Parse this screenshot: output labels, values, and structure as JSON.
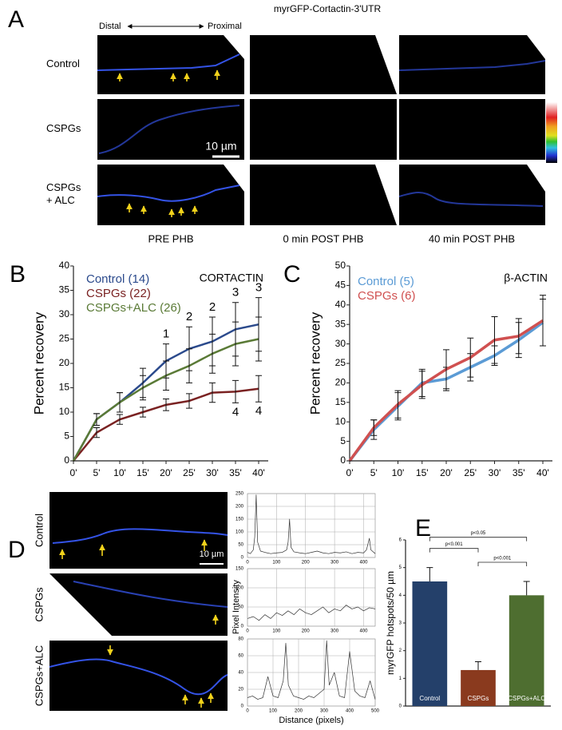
{
  "panels": {
    "A": {
      "letter": "A",
      "title": "myrGFP-Cortactin-3'UTR",
      "distal": "Distal",
      "proximal": "Proximal",
      "rows": [
        [
          "Control"
        ],
        [
          "CSPGs"
        ],
        [
          "CSPGs",
          "+ ALC"
        ]
      ],
      "columns": [
        "PRE PHB",
        "0 min POST PHB",
        "40 min POST PHB"
      ],
      "scale_bar": "10 µm"
    },
    "B": {
      "letter": "B"
    },
    "C": {
      "letter": "C"
    },
    "D": {
      "letter": "D",
      "rows": [
        "Control",
        "CSPGs",
        "CSPGs+ALC"
      ],
      "scale_bar": "10 µm",
      "y_label": "Pixel Intensity",
      "x_label": "Distance (pixels)"
    },
    "E": {
      "letter": "E"
    }
  },
  "chart_data": [
    {
      "type": "line",
      "title": "CORTACTIN",
      "ylabel": "Percent recovery",
      "categories": [
        "0'",
        "5'",
        "10'",
        "15'",
        "20'",
        "25'",
        "30'",
        "35'",
        "40'"
      ],
      "series": [
        {
          "name": "Control (14)",
          "color": "#2b4a8c",
          "values": [
            0,
            8.5,
            12,
            16,
            20.5,
            23,
            24.5,
            27,
            28
          ],
          "errors": [
            0,
            1.2,
            2,
            3,
            3.5,
            4.5,
            5,
            5.5,
            5.5
          ]
        },
        {
          "name": "CSPGs (22)",
          "color": "#7a2222",
          "values": [
            0,
            5.8,
            8.5,
            10,
            11.5,
            12.3,
            14,
            14.2,
            14.8
          ],
          "errors": [
            0,
            1,
            1,
            1,
            1.2,
            1.5,
            2,
            2.3,
            2.7
          ]
        },
        {
          "name": "CSPGs+ALC (26)",
          "color": "#5a7a36",
          "values": [
            0,
            8.5,
            12,
            15,
            17.5,
            19.5,
            22,
            24,
            25
          ],
          "errors": [
            0,
            1.2,
            2,
            2.5,
            3,
            3.5,
            4,
            4.5,
            4.5
          ]
        }
      ],
      "annotations": [
        {
          "text": "1",
          "x": "20'",
          "position": "above"
        },
        {
          "text": "2",
          "x": "25'",
          "position": "above"
        },
        {
          "text": "2",
          "x": "30'",
          "position": "above"
        },
        {
          "text": "3",
          "x": "35'",
          "position": "above"
        },
        {
          "text": "3",
          "x": "40'",
          "position": "above"
        },
        {
          "text": "4",
          "x": "35'",
          "position": "below"
        },
        {
          "text": "4",
          "x": "40'",
          "position": "below"
        }
      ],
      "ylim": [
        0,
        40
      ],
      "yticks": [
        0,
        5,
        10,
        15,
        20,
        25,
        30,
        35,
        40
      ],
      "grid": false
    },
    {
      "type": "line",
      "title": "β-ACTIN",
      "ylabel": "Percent recovery",
      "categories": [
        "0'",
        "5'",
        "10'",
        "15'",
        "20'",
        "25'",
        "30'",
        "35'",
        "40'"
      ],
      "series": [
        {
          "name": "Control (5)",
          "color": "#5b9bd5",
          "values": [
            0,
            8,
            14,
            20,
            21,
            24,
            27,
            31,
            35.5
          ],
          "errors": [
            0,
            2.5,
            3.5,
            3.5,
            3,
            3.5,
            2.5,
            4.5,
            6
          ]
        },
        {
          "name": "CSPGs (6)",
          "color": "#d05050",
          "values": [
            0,
            8.5,
            14.5,
            19.5,
            23.5,
            26.5,
            31,
            32,
            36
          ],
          "errors": [
            0,
            2,
            3.5,
            3.5,
            5,
            5,
            6,
            4.5,
            6.5
          ]
        }
      ],
      "ylim": [
        0,
        50
      ],
      "yticks": [
        0,
        5,
        10,
        15,
        20,
        25,
        30,
        35,
        40,
        45,
        50
      ],
      "grid": false
    },
    {
      "type": "bar",
      "ylabel": "myrGFP hotspots/50 µm",
      "categories": [
        "Control",
        "CSPGs",
        "CSPGs+ALC"
      ],
      "values": [
        4.5,
        1.3,
        4.0
      ],
      "errors": [
        0.5,
        0.3,
        0.5
      ],
      "colors": [
        "#24406a",
        "#8a3a1e",
        "#4e6e30"
      ],
      "ylim": [
        0,
        6
      ],
      "yticks": [
        0,
        1,
        2,
        3,
        4,
        5,
        6
      ],
      "comparisons": [
        {
          "label": "p<0.05",
          "from": 0,
          "to": 2
        },
        {
          "label": "p<0.001",
          "from": 0,
          "to": 1
        },
        {
          "label": "p<0.001",
          "from": 1,
          "to": 2
        }
      ]
    },
    {
      "type": "line",
      "x": [
        0,
        10,
        20,
        25,
        30,
        35,
        45,
        60,
        80,
        100,
        120,
        135,
        140,
        145,
        150,
        160,
        180,
        200,
        220,
        240,
        260,
        280,
        300,
        320,
        340,
        360,
        380,
        400,
        410,
        420,
        425,
        440
      ],
      "series": [
        {
          "color": "#333333",
          "values": [
            20,
            15,
            30,
            80,
            245,
            60,
            25,
            20,
            15,
            18,
            20,
            30,
            60,
            150,
            40,
            22,
            18,
            15,
            20,
            25,
            18,
            15,
            20,
            18,
            22,
            15,
            20,
            18,
            30,
            75,
            30,
            15
          ]
        }
      ],
      "xlim": [
        0,
        440
      ],
      "xticks": [
        0,
        100,
        200,
        300,
        400
      ],
      "ylim": [
        0,
        250
      ],
      "yticks": [
        0,
        50,
        100,
        150,
        200,
        250
      ],
      "grid": true
    },
    {
      "type": "line",
      "x": [
        0,
        20,
        40,
        60,
        80,
        100,
        120,
        140,
        160,
        180,
        200,
        220,
        240,
        260,
        280,
        300,
        320,
        340,
        360,
        380,
        400,
        420,
        440
      ],
      "series": [
        {
          "color": "#333333",
          "values": [
            20,
            25,
            15,
            30,
            20,
            35,
            28,
            40,
            30,
            45,
            35,
            30,
            40,
            50,
            35,
            45,
            40,
            55,
            45,
            50,
            40,
            48,
            45
          ]
        }
      ],
      "xlim": [
        0,
        440
      ],
      "xticks": [
        0,
        100,
        200,
        300,
        400
      ],
      "ylim": [
        0,
        150
      ],
      "yticks": [
        0,
        50,
        100,
        150
      ],
      "grid": true
    },
    {
      "type": "line",
      "x": [
        0,
        20,
        40,
        60,
        80,
        100,
        120,
        140,
        150,
        160,
        180,
        200,
        220,
        240,
        260,
        280,
        300,
        310,
        320,
        340,
        360,
        380,
        400,
        420,
        440,
        460,
        480,
        500
      ],
      "series": [
        {
          "color": "#333333",
          "values": [
            10,
            12,
            8,
            10,
            35,
            12,
            10,
            30,
            75,
            25,
            12,
            10,
            8,
            12,
            10,
            15,
            20,
            78,
            25,
            40,
            12,
            10,
            65,
            18,
            12,
            10,
            30,
            8
          ]
        }
      ],
      "xlim": [
        0,
        500
      ],
      "xticks": [
        0,
        100,
        200,
        300,
        400,
        500
      ],
      "ylim": [
        0,
        80
      ],
      "yticks": [
        0,
        20,
        40,
        60,
        80
      ],
      "grid": true
    }
  ]
}
